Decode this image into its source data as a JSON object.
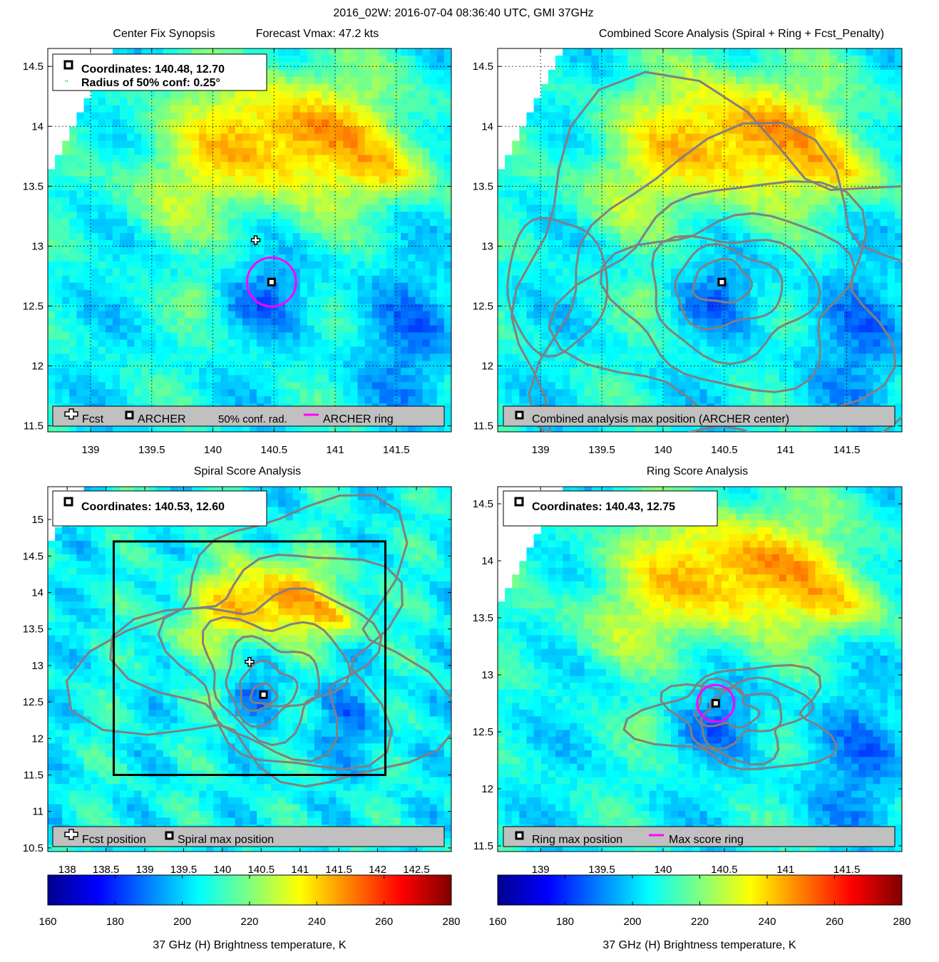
{
  "figure": {
    "suptitle": "2016_02W: 2016-07-04 08:36:40 UTC, GMI 37GHz"
  },
  "panels": [
    {
      "id": "synopsis",
      "title": "Center Fix Synopsis",
      "subtitle": "Forecast Vmax: 47.2 kts",
      "info_lines": [
        "Coordinates: 140.48, 12.70",
        "Radius of 50% conf: 0.25°"
      ],
      "legend": [
        "Fcst",
        "ARCHER",
        "50% conf. rad.",
        "ARCHER ring"
      ]
    },
    {
      "id": "combined",
      "title": "Combined Score Analysis (Spiral + Ring + Fcst_Penalty)",
      "legend": [
        "Combined analysis max position (ARCHER center)"
      ]
    },
    {
      "id": "spiral",
      "title": "Spiral Score Analysis",
      "info_lines": [
        "Coordinates: 140.53, 12.60"
      ],
      "legend": [
        "Fcst position",
        "Spiral max position"
      ]
    },
    {
      "id": "ring",
      "title": "Ring Score Analysis",
      "info_lines": [
        "Coordinates: 140.43, 12.75"
      ],
      "legend": [
        "Ring max position",
        "Max score ring"
      ]
    }
  ],
  "colorbar": {
    "label": "37 GHz (H) Brightness temperature, K",
    "ticks": [
      "160",
      "180",
      "200",
      "220",
      "240",
      "260",
      "280"
    ]
  },
  "chart_data": [
    {
      "type": "heatmap",
      "title": "Center Fix Synopsis",
      "xlim": [
        138.65,
        141.95
      ],
      "ylim": [
        11.45,
        14.65
      ],
      "xticks": [
        139,
        139.5,
        140,
        140.5,
        141,
        141.5
      ],
      "yticks": [
        11.5,
        12,
        12.5,
        13,
        13.5,
        14,
        14.5
      ],
      "grid": true,
      "fcst_position": [
        140.35,
        13.05
      ],
      "archer_center": [
        140.48,
        12.7
      ],
      "ring_radius_deg": 0.2
    },
    {
      "type": "heatmap",
      "title": "Combined Score Analysis (Spiral + Ring + Fcst_Penalty)",
      "xlim": [
        138.65,
        141.95
      ],
      "ylim": [
        11.45,
        14.65
      ],
      "xticks": [
        139,
        139.5,
        140,
        140.5,
        141,
        141.5
      ],
      "yticks": [
        11.5,
        12,
        12.5,
        13,
        13.5,
        14,
        14.5
      ],
      "grid": true,
      "archer_center": [
        140.48,
        12.7
      ]
    },
    {
      "type": "heatmap",
      "title": "Spiral Score Analysis",
      "xlim": [
        137.75,
        142.95
      ],
      "ylim": [
        10.45,
        15.45
      ],
      "xticks": [
        138,
        138.5,
        139,
        139.5,
        140,
        140.5,
        141,
        141.5,
        142,
        142.5
      ],
      "yticks": [
        10.5,
        11,
        11.5,
        12,
        12.5,
        13,
        13.5,
        14,
        14.5,
        15
      ],
      "grid": false,
      "fcst_position": [
        140.35,
        13.05
      ],
      "spiral_max_position": [
        140.53,
        12.6
      ],
      "search_box": [
        138.6,
        11.5,
        142.1,
        14.7
      ]
    },
    {
      "type": "heatmap",
      "title": "Ring Score Analysis",
      "xlim": [
        138.65,
        141.95
      ],
      "ylim": [
        11.45,
        14.65
      ],
      "xticks": [
        139,
        139.5,
        140,
        140.5,
        141,
        141.5
      ],
      "yticks": [
        11.5,
        12,
        12.5,
        13,
        13.5,
        14,
        14.5
      ],
      "grid": false,
      "ring_max_position": [
        140.43,
        12.75
      ],
      "ring_radius_deg": 0.15
    }
  ],
  "colors": {
    "ring": "#ff00ff",
    "contour": "#808080",
    "legend_bg": "#c0c0c0"
  }
}
